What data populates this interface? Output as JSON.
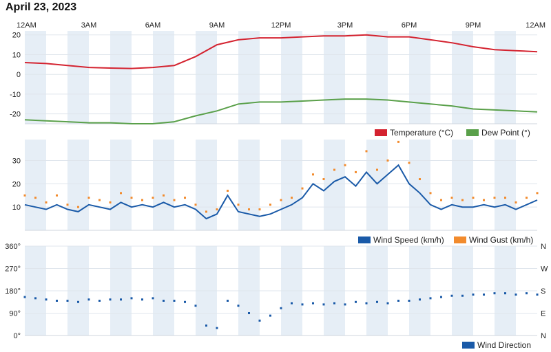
{
  "page": {
    "title": "April 23, 2023"
  },
  "colors": {
    "temperature": "#d42330",
    "dew_point": "#5aa04a",
    "wind_speed": "#1a5aa8",
    "wind_gust": "#f28b2d",
    "wind_direction": "#1a5aa8",
    "band": "#e6eef6",
    "grid": "#dfe5ec",
    "axis": "#cfd6de"
  },
  "time_axis": {
    "ticks": [
      "12AM",
      "3AM",
      "6AM",
      "9AM",
      "12PM",
      "3PM",
      "6PM",
      "9PM",
      "12AM"
    ],
    "hours": [
      0,
      3,
      6,
      9,
      12,
      15,
      18,
      21,
      24
    ]
  },
  "chart_data": [
    {
      "type": "line",
      "id": "temperature_dewpoint",
      "x_unit": "hour of day",
      "xlim": [
        0,
        24
      ],
      "ylim": [
        -25,
        22
      ],
      "yticks": [
        20,
        10,
        0,
        -10,
        -20
      ],
      "grid": true,
      "legend_position": "bottom-right",
      "series": [
        {
          "name": "Temperature (°C)",
          "color_key": "temperature",
          "points": [
            [
              0,
              6
            ],
            [
              1,
              5.5
            ],
            [
              2,
              4.5
            ],
            [
              3,
              3.5
            ],
            [
              4,
              3.2
            ],
            [
              5,
              3
            ],
            [
              6,
              3.5
            ],
            [
              7,
              4.5
            ],
            [
              8,
              9
            ],
            [
              9,
              15
            ],
            [
              10,
              17.5
            ],
            [
              11,
              18.5
            ],
            [
              12,
              18.5
            ],
            [
              13,
              19
            ],
            [
              14,
              19.5
            ],
            [
              15,
              19.5
            ],
            [
              16,
              20
            ],
            [
              17,
              19
            ],
            [
              18,
              19
            ],
            [
              19,
              17.5
            ],
            [
              20,
              16
            ],
            [
              21,
              14
            ],
            [
              22,
              12.5
            ],
            [
              23,
              12
            ],
            [
              24,
              11.5
            ]
          ]
        },
        {
          "name": "Dew Point (°)",
          "color_key": "dew_point",
          "points": [
            [
              0,
              -23
            ],
            [
              1,
              -23.5
            ],
            [
              2,
              -24
            ],
            [
              3,
              -24.5
            ],
            [
              4,
              -24.5
            ],
            [
              5,
              -25
            ],
            [
              6,
              -25
            ],
            [
              7,
              -24
            ],
            [
              8,
              -21
            ],
            [
              9,
              -18.5
            ],
            [
              10,
              -15
            ],
            [
              11,
              -14
            ],
            [
              12,
              -14
            ],
            [
              13,
              -13.5
            ],
            [
              14,
              -13
            ],
            [
              15,
              -12.5
            ],
            [
              16,
              -12.5
            ],
            [
              17,
              -13
            ],
            [
              18,
              -14
            ],
            [
              19,
              -15
            ],
            [
              20,
              -16
            ],
            [
              21,
              -17.5
            ],
            [
              22,
              -18
            ],
            [
              23,
              -18.5
            ],
            [
              24,
              -19
            ]
          ]
        }
      ]
    },
    {
      "type": "line",
      "id": "wind",
      "x_unit": "hour of day",
      "xlim": [
        0,
        24
      ],
      "ylim": [
        0,
        39
      ],
      "yticks": [
        30,
        20,
        10
      ],
      "grid": true,
      "legend_position": "bottom-right",
      "series": [
        {
          "name": "Wind Speed (km/h)",
          "color_key": "wind_speed",
          "style": "line",
          "points": [
            [
              0,
              11
            ],
            [
              0.5,
              10
            ],
            [
              1,
              9
            ],
            [
              1.5,
              11
            ],
            [
              2,
              9
            ],
            [
              2.5,
              8
            ],
            [
              3,
              11
            ],
            [
              3.5,
              10
            ],
            [
              4,
              9
            ],
            [
              4.5,
              12
            ],
            [
              5,
              10
            ],
            [
              5.5,
              11
            ],
            [
              6,
              10
            ],
            [
              6.5,
              12
            ],
            [
              7,
              10
            ],
            [
              7.5,
              11
            ],
            [
              8,
              9
            ],
            [
              8.5,
              5
            ],
            [
              9,
              7
            ],
            [
              9.5,
              15
            ],
            [
              10,
              8
            ],
            [
              10.5,
              7
            ],
            [
              11,
              6
            ],
            [
              11.5,
              7
            ],
            [
              12,
              9
            ],
            [
              12.5,
              11
            ],
            [
              13,
              14
            ],
            [
              13.5,
              20
            ],
            [
              14,
              17
            ],
            [
              14.5,
              21
            ],
            [
              15,
              23
            ],
            [
              15.5,
              19
            ],
            [
              16,
              25
            ],
            [
              16.5,
              20
            ],
            [
              17,
              24
            ],
            [
              17.5,
              28
            ],
            [
              18,
              20
            ],
            [
              18.5,
              16
            ],
            [
              19,
              11
            ],
            [
              19.5,
              9
            ],
            [
              20,
              11
            ],
            [
              20.5,
              10
            ],
            [
              21,
              10
            ],
            [
              21.5,
              11
            ],
            [
              22,
              10
            ],
            [
              22.5,
              11
            ],
            [
              23,
              9
            ],
            [
              23.5,
              11
            ],
            [
              24,
              13
            ]
          ]
        },
        {
          "name": "Wind Gust (km/h)",
          "color_key": "wind_gust",
          "style": "dots",
          "points": [
            [
              0,
              15
            ],
            [
              0.5,
              14
            ],
            [
              1,
              12
            ],
            [
              1.5,
              15
            ],
            [
              2,
              11
            ],
            [
              2.5,
              10
            ],
            [
              3,
              14
            ],
            [
              3.5,
              13
            ],
            [
              4,
              12
            ],
            [
              4.5,
              16
            ],
            [
              5,
              14
            ],
            [
              5.5,
              13
            ],
            [
              6,
              14
            ],
            [
              6.5,
              15
            ],
            [
              7,
              13
            ],
            [
              7.5,
              14
            ],
            [
              8,
              11
            ],
            [
              8.5,
              8
            ],
            [
              9,
              9
            ],
            [
              9.5,
              17
            ],
            [
              10,
              11
            ],
            [
              10.5,
              9
            ],
            [
              11,
              9
            ],
            [
              11.5,
              11
            ],
            [
              12,
              13
            ],
            [
              12.5,
              14
            ],
            [
              13,
              18
            ],
            [
              13.5,
              24
            ],
            [
              14,
              22
            ],
            [
              14.5,
              26
            ],
            [
              15,
              28
            ],
            [
              15.5,
              25
            ],
            [
              16,
              34
            ],
            [
              16.5,
              26
            ],
            [
              17,
              30
            ],
            [
              17.5,
              38
            ],
            [
              18,
              29
            ],
            [
              18.5,
              22
            ],
            [
              19,
              16
            ],
            [
              19.5,
              13
            ],
            [
              20,
              14
            ],
            [
              20.5,
              13
            ],
            [
              21,
              14
            ],
            [
              21.5,
              13
            ],
            [
              22,
              14
            ],
            [
              22.5,
              14
            ],
            [
              23,
              12
            ],
            [
              23.5,
              14
            ],
            [
              24,
              16
            ]
          ]
        }
      ]
    },
    {
      "type": "scatter",
      "id": "wind_direction",
      "x_unit": "hour of day",
      "xlim": [
        0,
        24
      ],
      "ylim": [
        0,
        360
      ],
      "yticks_left": [
        {
          "value": 360,
          "label": "360°"
        },
        {
          "value": 270,
          "label": "270°"
        },
        {
          "value": 180,
          "label": "180°"
        },
        {
          "value": 90,
          "label": "90°"
        },
        {
          "value": 0,
          "label": "0°"
        }
      ],
      "yticks_right": [
        {
          "value": 360,
          "label": "N"
        },
        {
          "value": 270,
          "label": "W"
        },
        {
          "value": 180,
          "label": "S"
        },
        {
          "value": 90,
          "label": "E"
        },
        {
          "value": 0,
          "label": "N"
        }
      ],
      "grid": true,
      "legend_position": "bottom-right",
      "series": [
        {
          "name": "Wind Direction",
          "color_key": "wind_direction",
          "points": [
            [
              0,
              155
            ],
            [
              0.5,
              150
            ],
            [
              1,
              145
            ],
            [
              1.5,
              140
            ],
            [
              2,
              140
            ],
            [
              2.5,
              135
            ],
            [
              3,
              145
            ],
            [
              3.5,
              140
            ],
            [
              4,
              145
            ],
            [
              4.5,
              145
            ],
            [
              5,
              150
            ],
            [
              5.5,
              145
            ],
            [
              6,
              150
            ],
            [
              6.5,
              140
            ],
            [
              7,
              140
            ],
            [
              7.5,
              135
            ],
            [
              8,
              120
            ],
            [
              8.5,
              40
            ],
            [
              9,
              30
            ],
            [
              9.5,
              140
            ],
            [
              10,
              120
            ],
            [
              10.5,
              90
            ],
            [
              11,
              60
            ],
            [
              11.5,
              80
            ],
            [
              12,
              110
            ],
            [
              12.5,
              130
            ],
            [
              13,
              125
            ],
            [
              13.5,
              130
            ],
            [
              14,
              125
            ],
            [
              14.5,
              130
            ],
            [
              15,
              125
            ],
            [
              15.5,
              135
            ],
            [
              16,
              130
            ],
            [
              16.5,
              135
            ],
            [
              17,
              130
            ],
            [
              17.5,
              140
            ],
            [
              18,
              140
            ],
            [
              18.5,
              145
            ],
            [
              19,
              150
            ],
            [
              19.5,
              155
            ],
            [
              20,
              160
            ],
            [
              20.5,
              160
            ],
            [
              21,
              165
            ],
            [
              21.5,
              165
            ],
            [
              22,
              170
            ],
            [
              22.5,
              170
            ],
            [
              23,
              165
            ],
            [
              23.5,
              170
            ],
            [
              24,
              165
            ]
          ]
        }
      ]
    }
  ]
}
